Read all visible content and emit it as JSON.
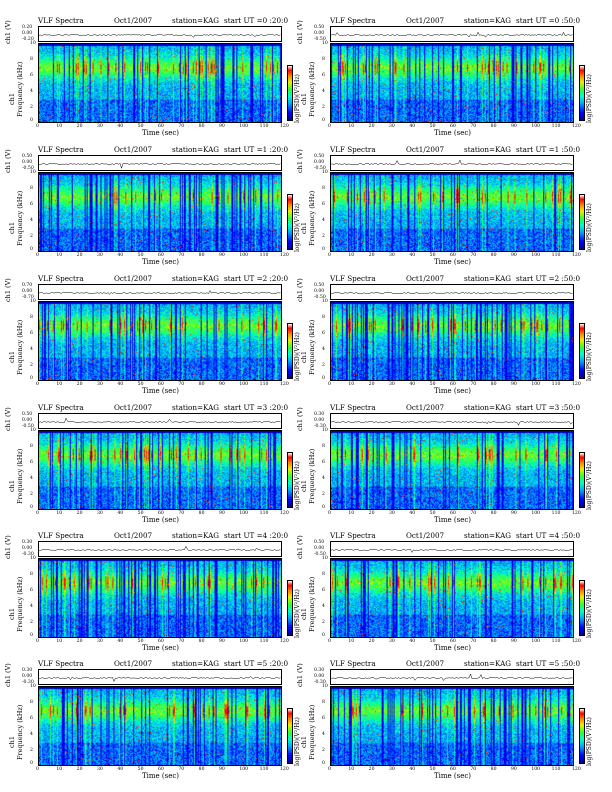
{
  "figure": {
    "colorbar_label": "log(PSD)(V²/Hz)",
    "colormap": [
      "#0000a0",
      "#0000ff",
      "#00a0ff",
      "#00ffd0",
      "#30ff30",
      "#e8f000",
      "#ff8000",
      "#ff0000",
      "#ffffff"
    ]
  },
  "panels": [
    {
      "title": "VLF Spectra",
      "date": "Oct1/2007",
      "station": "station=KAG",
      "start": "start  UT =0 :20:0",
      "strip_label": "ch1 (V)",
      "strip_ticks": [
        "0.20",
        "0.00",
        "-0.20"
      ],
      "spec_ylabel": "ch1\nFrequency (kHz)",
      "ylabel_line1": "ch1",
      "ylabel_line2": "Frequency (kHz)",
      "yticks": [
        "10",
        "8",
        "6",
        "4",
        "2",
        "0"
      ],
      "xticks": [
        "0",
        "10",
        "20",
        "30",
        "40",
        "50",
        "60",
        "70",
        "80",
        "90",
        "100",
        "110",
        "120"
      ],
      "xlabel": "Time (sec)"
    },
    {
      "title": "VLF Spectra",
      "date": "Oct1/2007",
      "station": "station=KAG",
      "start": "start  UT =0 :50:0",
      "strip_label": "ch1 (V)",
      "strip_ticks": [
        "0.50",
        "0.00",
        "-0.50"
      ],
      "ylabel_line1": "ch1",
      "ylabel_line2": "Frequency (kHz)",
      "yticks": [
        "10",
        "8",
        "6",
        "4",
        "2",
        "0"
      ],
      "xticks": [
        "0",
        "10",
        "20",
        "30",
        "40",
        "50",
        "60",
        "70",
        "80",
        "90",
        "100",
        "110",
        "120"
      ],
      "xlabel": "Time (sec)"
    },
    {
      "title": "VLF Spectra",
      "date": "Oct1/2007",
      "station": "station=KAG",
      "start": "start  UT =1 :20:0",
      "strip_label": "ch1 (V)",
      "strip_ticks": [
        "0.50",
        "0.00",
        "-0.50"
      ],
      "ylabel_line1": "ch1",
      "ylabel_line2": "Frequency (kHz)",
      "yticks": [
        "10",
        "8",
        "6",
        "4",
        "2",
        "0"
      ],
      "xticks": [
        "0",
        "10",
        "20",
        "30",
        "40",
        "50",
        "60",
        "70",
        "80",
        "90",
        "100",
        "110",
        "120"
      ],
      "xlabel": "Time (sec)"
    },
    {
      "title": "VLF Spectra",
      "date": "Oct1/2007",
      "station": "station=KAG",
      "start": "start  UT =1 :50:0",
      "strip_label": "ch1 (V)",
      "strip_ticks": [
        "0.50",
        "0.00",
        "-0.50"
      ],
      "ylabel_line1": "ch1",
      "ylabel_line2": "Frequency (kHz)",
      "yticks": [
        "10",
        "8",
        "6",
        "4",
        "2",
        "0"
      ],
      "xticks": [
        "0",
        "10",
        "20",
        "30",
        "40",
        "50",
        "60",
        "70",
        "80",
        "90",
        "100",
        "110",
        "120"
      ],
      "xlabel": "Time (sec)"
    },
    {
      "title": "VLF Spectra",
      "date": "Oct1/2007",
      "station": "station=KAG",
      "start": "start  UT =2 :20:0",
      "strip_label": "ch1 (V)",
      "strip_ticks": [
        "0.70",
        "0.00",
        "-0.70"
      ],
      "ylabel_line1": "ch1",
      "ylabel_line2": "Frequency (kHz)",
      "yticks": [
        "10",
        "8",
        "6",
        "4",
        "2",
        "0"
      ],
      "xticks": [
        "0",
        "10",
        "20",
        "30",
        "40",
        "50",
        "60",
        "70",
        "80",
        "90",
        "100",
        "110",
        "120"
      ],
      "xlabel": "Time (sec)"
    },
    {
      "title": "VLF Spectra",
      "date": "Oct1/2007",
      "station": "station=KAG",
      "start": "start  UT =2 :50:0",
      "strip_label": "ch1 (V)",
      "strip_ticks": [
        "0.50",
        "0.00",
        "-0.50"
      ],
      "ylabel_line1": "ch1",
      "ylabel_line2": "Frequency (kHz)",
      "yticks": [
        "10",
        "8",
        "6",
        "4",
        "2",
        "0"
      ],
      "xticks": [
        "0",
        "10",
        "20",
        "30",
        "40",
        "50",
        "60",
        "70",
        "80",
        "90",
        "100",
        "110",
        "120"
      ],
      "xlabel": "Time (sec)"
    },
    {
      "title": "VLF Spectra",
      "date": "Oct1/2007",
      "station": "station=KAG",
      "start": "start  UT =3 :20:0",
      "strip_label": "ch1 (V)",
      "strip_ticks": [
        "0.50",
        "0.00",
        "-0.50"
      ],
      "ylabel_line1": "ch1",
      "ylabel_line2": "Frequency (kHz)",
      "yticks": [
        "10",
        "8",
        "6",
        "4",
        "2",
        "0"
      ],
      "xticks": [
        "0",
        "10",
        "20",
        "30",
        "40",
        "50",
        "60",
        "70",
        "80",
        "90",
        "100",
        "110",
        "120"
      ],
      "xlabel": "Time (sec)"
    },
    {
      "title": "VLF Spectra",
      "date": "Oct1/2007",
      "station": "station=KAG",
      "start": "start  UT =3 :50:0",
      "strip_label": "ch1 (V)",
      "strip_ticks": [
        "0.30",
        "0.00",
        "-0.30"
      ],
      "ylabel_line1": "ch1",
      "ylabel_line2": "Frequency (kHz)",
      "yticks": [
        "10",
        "8",
        "6",
        "4",
        "2",
        "0"
      ],
      "xticks": [
        "0",
        "10",
        "20",
        "30",
        "40",
        "50",
        "60",
        "70",
        "80",
        "90",
        "100",
        "110",
        "120"
      ],
      "xlabel": "Time (sec)"
    },
    {
      "title": "VLF Spectra",
      "date": "Oct1/2007",
      "station": "station=KAG",
      "start": "start  UT =4 :20:0",
      "strip_label": "ch1 (V)",
      "strip_ticks": [
        "0.30",
        "0.00",
        "-0.30"
      ],
      "ylabel_line1": "ch1",
      "ylabel_line2": "Frequency (kHz)",
      "yticks": [
        "10",
        "8",
        "6",
        "4",
        "2",
        "0"
      ],
      "xticks": [
        "0",
        "10",
        "20",
        "30",
        "40",
        "50",
        "60",
        "70",
        "80",
        "90",
        "100",
        "110",
        "120"
      ],
      "xlabel": "Time (sec)"
    },
    {
      "title": "VLF Spectra",
      "date": "Oct1/2007",
      "station": "station=KAG",
      "start": "start  UT =4 :50:0",
      "strip_label": "ch1 (V)",
      "strip_ticks": [
        "0.50",
        "0.00",
        "-0.50"
      ],
      "ylabel_line1": "ch1",
      "ylabel_line2": "Frequency (kHz)",
      "yticks": [
        "10",
        "8",
        "6",
        "4",
        "2",
        "0"
      ],
      "xticks": [
        "0",
        "10",
        "20",
        "30",
        "40",
        "50",
        "60",
        "70",
        "80",
        "90",
        "100",
        "110",
        "120"
      ],
      "xlabel": "Time (sec)"
    },
    {
      "title": "VLF Spectra",
      "date": "Oct1/2007",
      "station": "station=KAG",
      "start": "start  UT =5 :20:0",
      "strip_label": "ch1 (V)",
      "strip_ticks": [
        "0.30",
        "0.00",
        "-0.30"
      ],
      "ylabel_line1": "ch1",
      "ylabel_line2": "Frequency (kHz)",
      "yticks": [
        "10",
        "8",
        "6",
        "4",
        "2",
        "0"
      ],
      "xticks": [
        "0",
        "10",
        "20",
        "30",
        "40",
        "50",
        "60",
        "70",
        "80",
        "90",
        "100",
        "110",
        "120"
      ],
      "xlabel": "Time (sec)"
    },
    {
      "title": "VLF Spectra",
      "date": "Oct1/2007",
      "station": "station=KAG",
      "start": "start  UT =5 :50:0",
      "strip_label": "ch1 (V)",
      "strip_ticks": [
        "0.30",
        "0.00",
        "-0.30"
      ],
      "ylabel_line1": "ch1",
      "ylabel_line2": "Frequency (kHz)",
      "yticks": [
        "10",
        "8",
        "6",
        "4",
        "2",
        "0"
      ],
      "xticks": [
        "0",
        "10",
        "20",
        "30",
        "40",
        "50",
        "60",
        "70",
        "80",
        "90",
        "100",
        "110",
        "120"
      ],
      "xlabel": "Time (sec)"
    }
  ],
  "chart_data": {
    "type": "heatmap",
    "subplots": 12,
    "xlabel": "Time (sec)",
    "xlim": [
      0,
      120
    ],
    "ylim_khz": [
      0,
      10
    ],
    "colorbar_label": "log(PSD)(V²/Hz)"
  }
}
